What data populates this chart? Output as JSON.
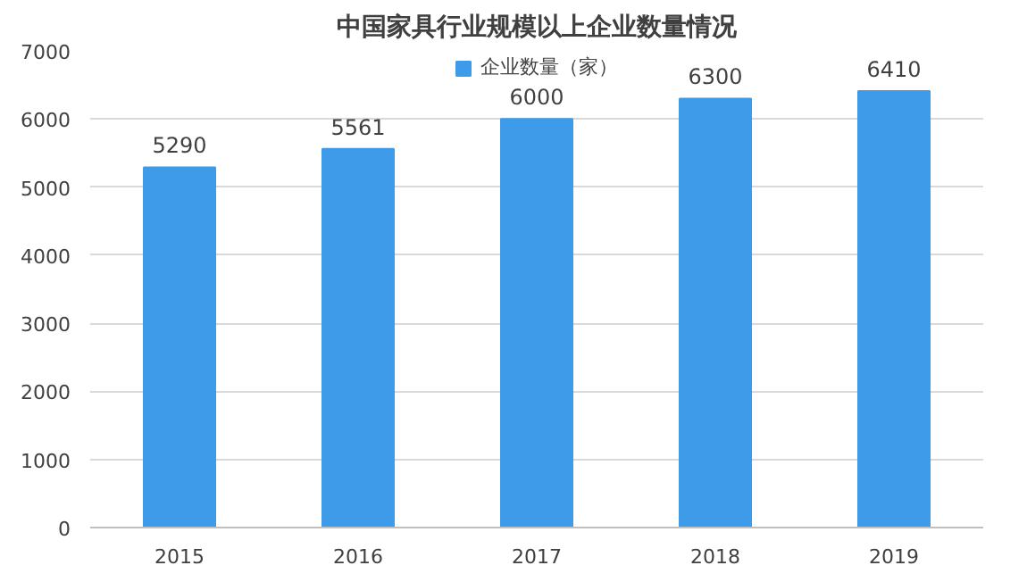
{
  "chart_data": {
    "type": "bar",
    "title": "中国家具行业规模以上企业数量情况",
    "categories": [
      "2015",
      "2016",
      "2017",
      "2018",
      "2019"
    ],
    "series": [
      {
        "name": "企业数量（家）",
        "color": "#3d9be9",
        "values": [
          5290,
          5561,
          6000,
          6300,
          6410
        ]
      }
    ],
    "ylim": [
      0,
      7000
    ],
    "yticks": [
      0,
      1000,
      2000,
      3000,
      4000,
      5000,
      6000,
      7000
    ],
    "grid": "y",
    "legend": "top",
    "data_labels": true
  }
}
